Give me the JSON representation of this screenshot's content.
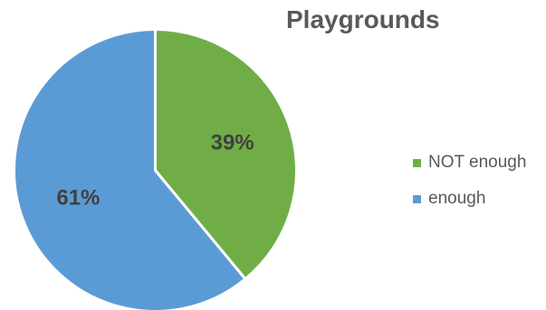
{
  "chart_data": {
    "type": "pie",
    "title": "Playgrounds",
    "categories": [
      "NOT enough",
      "enough"
    ],
    "values": [
      39,
      61
    ],
    "labels": [
      "39%",
      "61%"
    ],
    "colors": [
      "#70ad47",
      "#5b9bd5"
    ],
    "start_angle_deg": 0,
    "direction": "clockwise",
    "legend_position": "right"
  }
}
